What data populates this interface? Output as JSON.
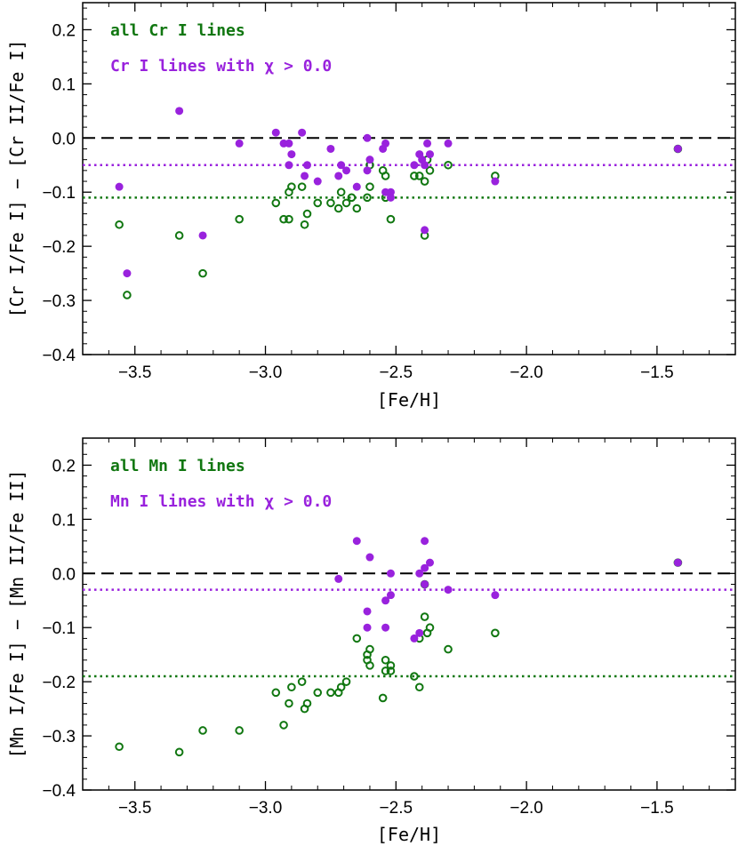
{
  "colors": {
    "all_lines": "#117711",
    "selected_lines": "#9922dd",
    "zero_line": "#000000"
  },
  "chart_data": [
    {
      "type": "scatter",
      "xlabel": "[Fe/H]",
      "ylabel": "[Cr I/Fe I] − [Cr II/Fe I]",
      "xlim": [
        -3.7,
        -1.2
      ],
      "ylim": [
        -0.4,
        0.25
      ],
      "x_ticks": [
        -3.5,
        -3.0,
        -2.5,
        -2.0,
        -1.5
      ],
      "x_tick_labels": [
        "−3.5",
        "−3.0",
        "−2.5",
        "−2.0",
        "−1.5"
      ],
      "y_ticks": [
        -0.4,
        -0.3,
        -0.2,
        -0.1,
        0.0,
        0.1,
        0.2
      ],
      "y_tick_labels": [
        "−0.4",
        "−0.3",
        "−0.2",
        "−0.1",
        "0.0",
        "0.1",
        "0.2"
      ],
      "grid": false,
      "legend_position": "top-left",
      "zero_line": 0.0,
      "series": [
        {
          "name": "all Cr I lines",
          "color": "#117711",
          "marker": "open-circle",
          "mean_line": -0.11,
          "points": [
            [
              -3.56,
              -0.16
            ],
            [
              -3.53,
              -0.29
            ],
            [
              -3.33,
              -0.18
            ],
            [
              -3.24,
              -0.25
            ],
            [
              -3.1,
              -0.15
            ],
            [
              -2.96,
              -0.12
            ],
            [
              -2.93,
              -0.15
            ],
            [
              -2.91,
              -0.15
            ],
            [
              -2.91,
              -0.1
            ],
            [
              -2.9,
              -0.09
            ],
            [
              -2.86,
              -0.09
            ],
            [
              -2.85,
              -0.16
            ],
            [
              -2.84,
              -0.14
            ],
            [
              -2.8,
              -0.12
            ],
            [
              -2.75,
              -0.12
            ],
            [
              -2.72,
              -0.13
            ],
            [
              -2.71,
              -0.1
            ],
            [
              -2.69,
              -0.12
            ],
            [
              -2.67,
              -0.11
            ],
            [
              -2.65,
              -0.13
            ],
            [
              -2.61,
              -0.11
            ],
            [
              -2.6,
              -0.09
            ],
            [
              -2.6,
              -0.05
            ],
            [
              -2.55,
              -0.06
            ],
            [
              -2.54,
              -0.07
            ],
            [
              -2.54,
              -0.11
            ],
            [
              -2.52,
              -0.15
            ],
            [
              -2.43,
              -0.07
            ],
            [
              -2.41,
              -0.07
            ],
            [
              -2.39,
              -0.08
            ],
            [
              -2.39,
              -0.18
            ],
            [
              -2.37,
              -0.06
            ],
            [
              -2.38,
              -0.04
            ],
            [
              -2.3,
              -0.05
            ],
            [
              -2.12,
              -0.07
            ],
            [
              -1.42,
              -0.02
            ]
          ]
        },
        {
          "name": "Cr I lines with χ > 0.0",
          "color": "#9922dd",
          "marker": "filled-circle",
          "mean_line": -0.05,
          "points": [
            [
              -3.56,
              -0.09
            ],
            [
              -3.53,
              -0.25
            ],
            [
              -3.33,
              0.05
            ],
            [
              -3.24,
              -0.18
            ],
            [
              -3.1,
              -0.01
            ],
            [
              -2.96,
              0.01
            ],
            [
              -2.93,
              -0.01
            ],
            [
              -2.91,
              -0.01
            ],
            [
              -2.91,
              -0.05
            ],
            [
              -2.9,
              -0.03
            ],
            [
              -2.86,
              0.01
            ],
            [
              -2.85,
              -0.07
            ],
            [
              -2.84,
              -0.05
            ],
            [
              -2.8,
              -0.08
            ],
            [
              -2.75,
              -0.02
            ],
            [
              -2.72,
              -0.07
            ],
            [
              -2.71,
              -0.05
            ],
            [
              -2.69,
              -0.06
            ],
            [
              -2.65,
              -0.09
            ],
            [
              -2.61,
              0.0
            ],
            [
              -2.61,
              -0.06
            ],
            [
              -2.6,
              -0.04
            ],
            [
              -2.55,
              -0.02
            ],
            [
              -2.54,
              -0.01
            ],
            [
              -2.54,
              -0.1
            ],
            [
              -2.52,
              -0.1
            ],
            [
              -2.52,
              -0.11
            ],
            [
              -2.43,
              -0.05
            ],
            [
              -2.41,
              -0.03
            ],
            [
              -2.4,
              -0.04
            ],
            [
              -2.39,
              -0.05
            ],
            [
              -2.39,
              -0.17
            ],
            [
              -2.38,
              -0.01
            ],
            [
              -2.37,
              -0.03
            ],
            [
              -2.3,
              -0.01
            ],
            [
              -2.12,
              -0.08
            ],
            [
              -1.42,
              -0.02
            ]
          ]
        }
      ]
    },
    {
      "type": "scatter",
      "xlabel": "[Fe/H]",
      "ylabel": "[Mn I/Fe I] − [Mn II/Fe II]",
      "xlim": [
        -3.7,
        -1.2
      ],
      "ylim": [
        -0.4,
        0.25
      ],
      "x_ticks": [
        -3.5,
        -3.0,
        -2.5,
        -2.0,
        -1.5
      ],
      "x_tick_labels": [
        "−3.5",
        "−3.0",
        "−2.5",
        "−2.0",
        "−1.5"
      ],
      "y_ticks": [
        -0.4,
        -0.3,
        -0.2,
        -0.1,
        0.0,
        0.1,
        0.2
      ],
      "y_tick_labels": [
        "−0.4",
        "−0.3",
        "−0.2",
        "−0.1",
        "0.0",
        "0.1",
        "0.2"
      ],
      "grid": false,
      "legend_position": "top-left",
      "zero_line": 0.0,
      "series": [
        {
          "name": "all Mn I lines",
          "color": "#117711",
          "marker": "open-circle",
          "mean_line": -0.19,
          "points": [
            [
              -3.56,
              -0.32
            ],
            [
              -3.33,
              -0.33
            ],
            [
              -3.24,
              -0.29
            ],
            [
              -3.1,
              -0.29
            ],
            [
              -2.96,
              -0.22
            ],
            [
              -2.93,
              -0.28
            ],
            [
              -2.91,
              -0.24
            ],
            [
              -2.9,
              -0.21
            ],
            [
              -2.86,
              -0.2
            ],
            [
              -2.85,
              -0.25
            ],
            [
              -2.84,
              -0.24
            ],
            [
              -2.8,
              -0.22
            ],
            [
              -2.75,
              -0.22
            ],
            [
              -2.72,
              -0.22
            ],
            [
              -2.71,
              -0.21
            ],
            [
              -2.69,
              -0.2
            ],
            [
              -2.65,
              -0.12
            ],
            [
              -2.61,
              -0.15
            ],
            [
              -2.61,
              -0.16
            ],
            [
              -2.6,
              -0.14
            ],
            [
              -2.6,
              -0.17
            ],
            [
              -2.55,
              -0.23
            ],
            [
              -2.54,
              -0.16
            ],
            [
              -2.54,
              -0.18
            ],
            [
              -2.52,
              -0.17
            ],
            [
              -2.52,
              -0.18
            ],
            [
              -2.43,
              -0.19
            ],
            [
              -2.41,
              -0.21
            ],
            [
              -2.41,
              -0.12
            ],
            [
              -2.39,
              -0.08
            ],
            [
              -2.39,
              -0.02
            ],
            [
              -2.38,
              -0.11
            ],
            [
              -2.37,
              -0.1
            ],
            [
              -2.3,
              -0.14
            ],
            [
              -2.12,
              -0.11
            ],
            [
              -1.42,
              0.02
            ]
          ]
        },
        {
          "name": "Mn I lines with χ > 0.0",
          "color": "#9922dd",
          "marker": "filled-circle",
          "mean_line": -0.03,
          "points": [
            [
              -2.72,
              -0.01
            ],
            [
              -2.65,
              0.06
            ],
            [
              -2.6,
              0.03
            ],
            [
              -2.61,
              -0.07
            ],
            [
              -2.61,
              -0.1
            ],
            [
              -2.54,
              -0.05
            ],
            [
              -2.54,
              -0.1
            ],
            [
              -2.52,
              -0.04
            ],
            [
              -2.52,
              0.0
            ],
            [
              -2.43,
              -0.12
            ],
            [
              -2.41,
              0.0
            ],
            [
              -2.41,
              -0.11
            ],
            [
              -2.39,
              0.06
            ],
            [
              -2.39,
              0.01
            ],
            [
              -2.39,
              -0.02
            ],
            [
              -2.37,
              0.02
            ],
            [
              -2.3,
              -0.03
            ],
            [
              -2.12,
              -0.04
            ],
            [
              -1.42,
              0.02
            ]
          ]
        }
      ]
    }
  ]
}
